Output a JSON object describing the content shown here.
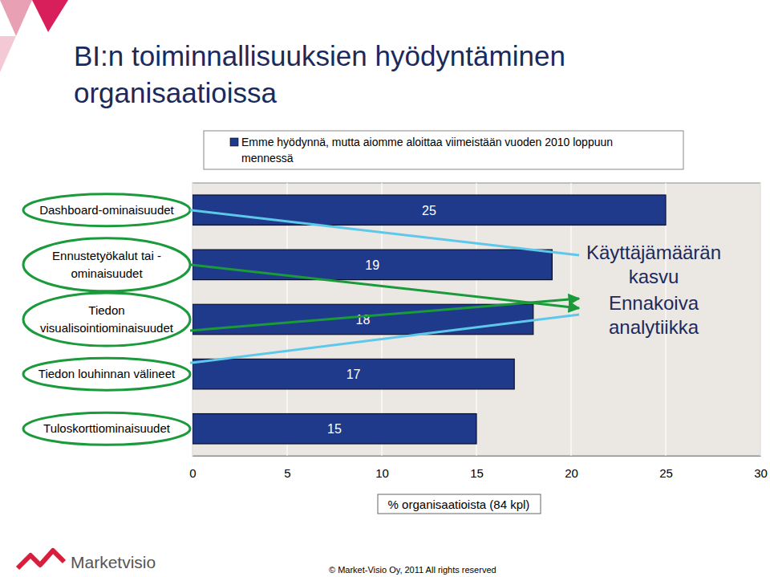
{
  "chart_data": {
    "type": "bar",
    "orientation": "horizontal",
    "title": "BI:n toiminnallisuuksien hyödyntäminen\norganisaatioissa",
    "categories": [
      "Dashboard-ominaisuudet",
      "Ennustetyökalut tai -\nominaisuudet",
      "Tiedon\nvisualisointiominaisuudet",
      "Tiedon louhinnan välineet",
      "Tuloskorttiominaisuudet"
    ],
    "series": [
      {
        "name": "Emme hyödynnä, mutta aiomme aloittaa viimeistään vuoden 2010 loppuun\nmennessä",
        "color": "#1f3a8a",
        "values": [
          25,
          19,
          18,
          17,
          15
        ]
      }
    ],
    "xlim": [
      0,
      30
    ],
    "xticks": [
      0,
      5,
      10,
      15,
      20,
      25,
      30
    ],
    "xlabel": "% organisaatioista (84 kpl)",
    "grid": true,
    "data_labels": true,
    "legend": "top",
    "annotations": [
      "Käyttäjämäärän\nkasvu",
      "Ennakoiva\nanalytiikka"
    ],
    "logo": "Marketvisio",
    "source": "© Market-Visio Oy, 2011 All rights reserved"
  }
}
